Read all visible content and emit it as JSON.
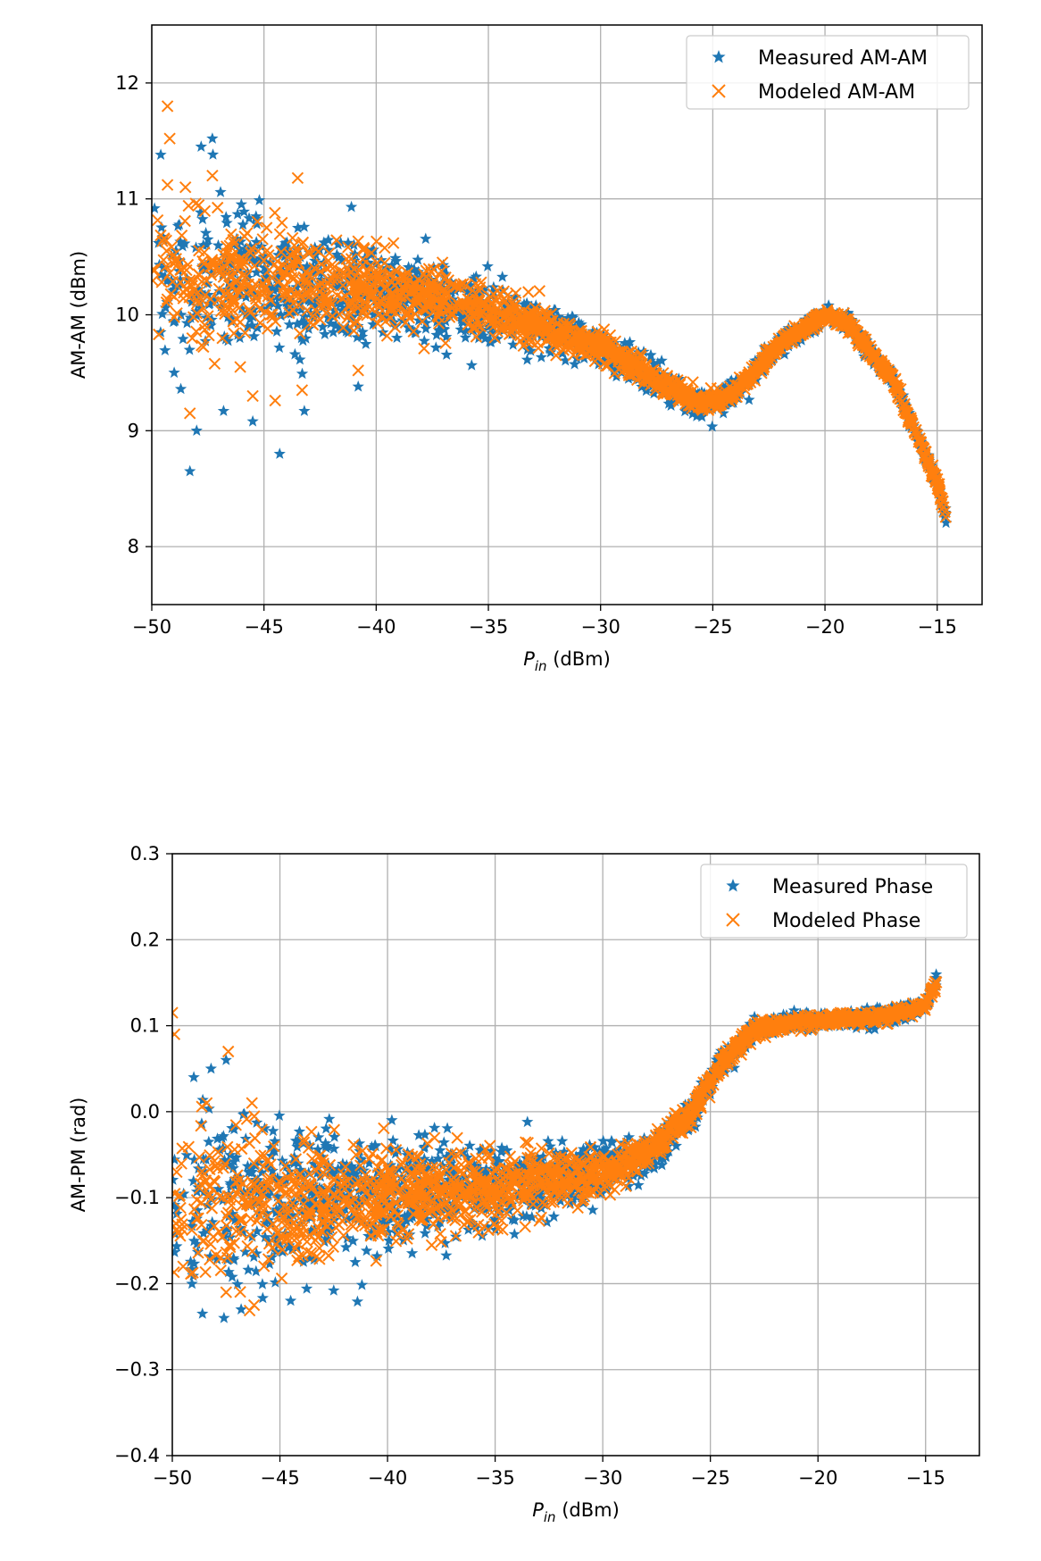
{
  "chart_data": [
    {
      "type": "scatter",
      "xlabel": "P",
      "xlabel_sub": "in",
      "xlabel_unit": " (dBm)",
      "ylabel": "AM-AM (dBm)",
      "xlim": [
        -50,
        -13
      ],
      "ylim": [
        7.5,
        12.5
      ],
      "xticks": [
        -50,
        -45,
        -40,
        -35,
        -30,
        -25,
        -20,
        -15
      ],
      "xtick_labels": [
        "−50",
        "−45",
        "−40",
        "−35",
        "−30",
        "−25",
        "−20",
        "−15"
      ],
      "yticks": [
        8,
        9,
        10,
        11,
        12
      ],
      "ytick_labels": [
        "8",
        "9",
        "10",
        "11",
        "12"
      ],
      "grid": true,
      "legend_position": "top-right",
      "series": [
        {
          "name": "Measured AM-AM",
          "marker": "star",
          "color": "#1f77b4",
          "trend": [
            [
              -50,
              10.3
            ],
            [
              -45,
              10.28
            ],
            [
              -40,
              10.22
            ],
            [
              -35,
              10.05
            ],
            [
              -30,
              9.72
            ],
            [
              -27,
              9.38
            ],
            [
              -25.5,
              9.22
            ],
            [
              -24,
              9.33
            ],
            [
              -22,
              9.75
            ],
            [
              -20,
              10.0
            ],
            [
              -19,
              9.93
            ],
            [
              -17,
              9.45
            ],
            [
              -16,
              9.0
            ],
            [
              -15,
              8.55
            ],
            [
              -14.6,
              8.25
            ]
          ],
          "spread": [
            [
              -50,
              0.65
            ],
            [
              -45,
              0.52
            ],
            [
              -40,
              0.36
            ],
            [
              -35,
              0.22
            ],
            [
              -30,
              0.13
            ],
            [
              -26,
              0.1
            ],
            [
              -20,
              0.07
            ],
            [
              -15,
              0.05
            ]
          ],
          "outliers": [
            [
              -48.3,
              8.65
            ],
            [
              -44.3,
              8.8
            ],
            [
              -47.3,
              11.52
            ],
            [
              -47.8,
              11.45
            ],
            [
              -49.6,
              11.38
            ],
            [
              -45.5,
              9.08
            ],
            [
              -46.8,
              9.17
            ],
            [
              -43.2,
              9.17
            ],
            [
              -40.8,
              9.38
            ],
            [
              -48.0,
              9.0
            ],
            [
              -49.0,
              9.5
            ]
          ]
        },
        {
          "name": "Modeled AM-AM",
          "marker": "x",
          "color": "#ff7f0e",
          "trend": [
            [
              -50,
              10.3
            ],
            [
              -45,
              10.28
            ],
            [
              -40,
              10.22
            ],
            [
              -35,
              10.05
            ],
            [
              -30,
              9.72
            ],
            [
              -27,
              9.38
            ],
            [
              -25.5,
              9.22
            ],
            [
              -24,
              9.33
            ],
            [
              -22,
              9.75
            ],
            [
              -20,
              10.0
            ],
            [
              -19,
              9.93
            ],
            [
              -17,
              9.45
            ],
            [
              -16,
              9.0
            ],
            [
              -15,
              8.55
            ],
            [
              -14.6,
              8.25
            ]
          ],
          "spread": [
            [
              -50,
              0.55
            ],
            [
              -45,
              0.44
            ],
            [
              -40,
              0.3
            ],
            [
              -35,
              0.18
            ],
            [
              -30,
              0.11
            ],
            [
              -26,
              0.08
            ],
            [
              -20,
              0.05
            ],
            [
              -15,
              0.04
            ]
          ],
          "outliers": [
            [
              -49.3,
              11.8
            ],
            [
              -49.2,
              11.52
            ],
            [
              -49.3,
              11.12
            ],
            [
              -48.5,
              11.1
            ],
            [
              -43.5,
              11.18
            ],
            [
              -47.3,
              11.2
            ],
            [
              -48.3,
              9.15
            ],
            [
              -44.5,
              9.26
            ],
            [
              -43.3,
              9.35
            ],
            [
              -40.8,
              9.52
            ],
            [
              -45.5,
              9.3
            ]
          ]
        }
      ]
    },
    {
      "type": "scatter",
      "xlabel": "P",
      "xlabel_sub": "in",
      "xlabel_unit": " (dBm)",
      "ylabel": "AM-PM (rad)",
      "xlim": [
        -50,
        -12.5
      ],
      "ylim": [
        -0.4,
        0.3
      ],
      "xticks": [
        -50,
        -45,
        -40,
        -35,
        -30,
        -25,
        -20,
        -15
      ],
      "xtick_labels": [
        "−50",
        "−45",
        "−40",
        "−35",
        "−30",
        "−25",
        "−20",
        "−15"
      ],
      "yticks": [
        -0.4,
        -0.3,
        -0.2,
        -0.1,
        0.0,
        0.1,
        0.2,
        0.3
      ],
      "ytick_labels": [
        "−0.4",
        "−0.3",
        "−0.2",
        "−0.1",
        "0.0",
        "0.1",
        "0.2",
        "0.3"
      ],
      "grid": true,
      "legend_position": "top-right",
      "series": [
        {
          "name": "Measured Phase",
          "marker": "star",
          "color": "#1f77b4",
          "trend": [
            [
              -50,
              -0.11
            ],
            [
              -45,
              -0.105
            ],
            [
              -40,
              -0.098
            ],
            [
              -35,
              -0.088
            ],
            [
              -30,
              -0.07
            ],
            [
              -28,
              -0.05
            ],
            [
              -26,
              -0.005
            ],
            [
              -24.5,
              0.055
            ],
            [
              -23,
              0.095
            ],
            [
              -21,
              0.105
            ],
            [
              -18,
              0.108
            ],
            [
              -16,
              0.115
            ],
            [
              -15,
              0.125
            ],
            [
              -14.5,
              0.15
            ]
          ],
          "spread": [
            [
              -50,
              0.11
            ],
            [
              -45,
              0.08
            ],
            [
              -40,
              0.058
            ],
            [
              -35,
              0.042
            ],
            [
              -30,
              0.028
            ],
            [
              -26,
              0.015
            ],
            [
              -22,
              0.008
            ],
            [
              -15,
              0.008
            ]
          ],
          "outliers": [
            [
              -48.6,
              -0.235
            ],
            [
              -47.6,
              -0.24
            ],
            [
              -46.8,
              -0.23
            ],
            [
              -44.5,
              -0.22
            ],
            [
              -42.5,
              -0.208
            ],
            [
              -47.5,
              0.06
            ],
            [
              -49.0,
              0.04
            ],
            [
              -48.2,
              0.05
            ],
            [
              -39.8,
              -0.01
            ],
            [
              -33.5,
              -0.012
            ],
            [
              -41.5,
              -0.175
            ]
          ]
        },
        {
          "name": "Modeled Phase",
          "marker": "x",
          "color": "#ff7f0e",
          "trend": [
            [
              -50,
              -0.11
            ],
            [
              -45,
              -0.105
            ],
            [
              -40,
              -0.098
            ],
            [
              -35,
              -0.088
            ],
            [
              -30,
              -0.07
            ],
            [
              -28,
              -0.05
            ],
            [
              -26,
              -0.005
            ],
            [
              -24.5,
              0.055
            ],
            [
              -23,
              0.095
            ],
            [
              -21,
              0.105
            ],
            [
              -18,
              0.108
            ],
            [
              -16,
              0.115
            ],
            [
              -15,
              0.125
            ],
            [
              -14.5,
              0.15
            ]
          ],
          "spread": [
            [
              -50,
              0.09
            ],
            [
              -45,
              0.066
            ],
            [
              -40,
              0.048
            ],
            [
              -35,
              0.035
            ],
            [
              -30,
              0.022
            ],
            [
              -26,
              0.012
            ],
            [
              -22,
              0.007
            ],
            [
              -15,
              0.006
            ]
          ],
          "outliers": [
            [
              -50,
              0.115
            ],
            [
              -49.9,
              0.09
            ],
            [
              -47.4,
              0.07
            ],
            [
              -48.4,
              0.01
            ],
            [
              -46.3,
              0.01
            ],
            [
              -47.5,
              -0.21
            ],
            [
              -46.2,
              -0.225
            ],
            [
              -49.5,
              -0.18
            ]
          ]
        }
      ]
    }
  ]
}
